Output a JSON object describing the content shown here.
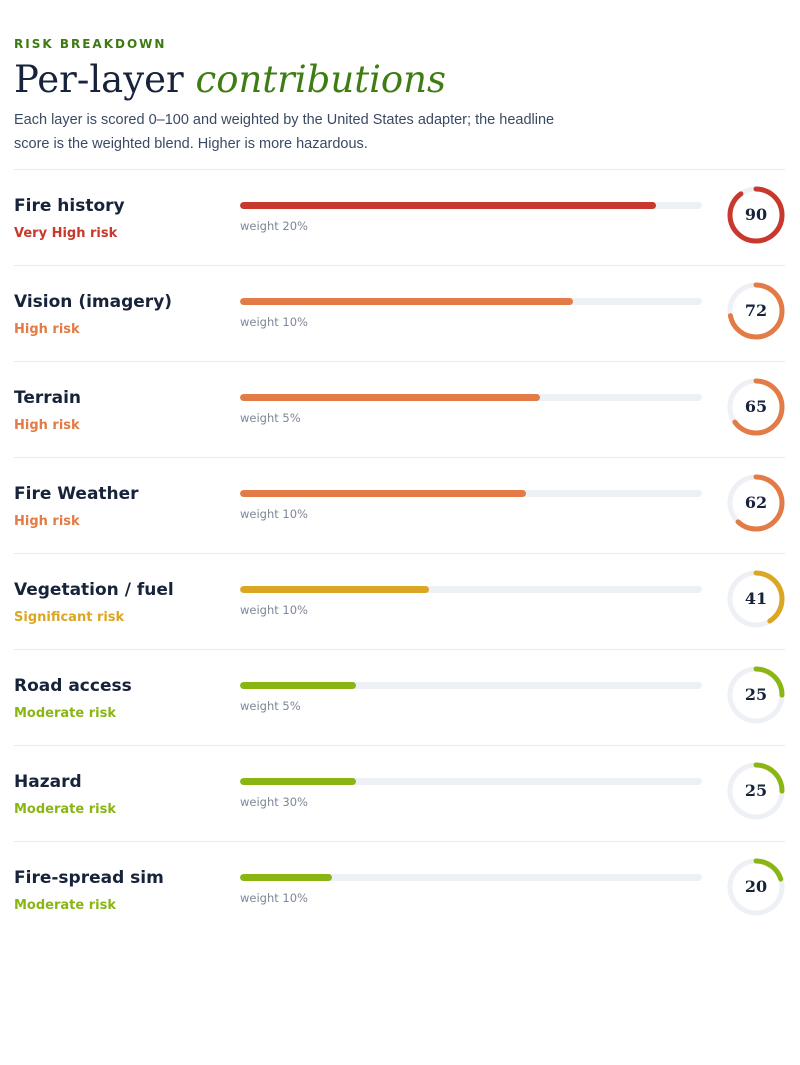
{
  "header": {
    "eyebrow": "RISK BREAKDOWN",
    "title_plain": "Per-layer ",
    "title_accent": "contributions",
    "intro": "Each layer is scored 0–100 and weighted by the United States adapter; the headline score is the weighted blend. Higher is more hazardous."
  },
  "colors": {
    "very_high": "#c8382c",
    "high": "#e27b45",
    "significant": "#dba624",
    "moderate": "#8ab613",
    "track": "#edf0f4"
  },
  "layers": [
    {
      "name": "Fire history",
      "risk": "Very High risk",
      "level": "very_high",
      "weight": "weight 20%",
      "score": 90
    },
    {
      "name": "Vision (imagery)",
      "risk": "High risk",
      "level": "high",
      "weight": "weight 10%",
      "score": 72
    },
    {
      "name": "Terrain",
      "risk": "High risk",
      "level": "high",
      "weight": "weight 5%",
      "score": 65
    },
    {
      "name": "Fire Weather",
      "risk": "High risk",
      "level": "high",
      "weight": "weight 10%",
      "score": 62
    },
    {
      "name": "Vegetation / fuel",
      "risk": "Significant risk",
      "level": "significant",
      "weight": "weight 10%",
      "score": 41
    },
    {
      "name": "Road access",
      "risk": "Moderate risk",
      "level": "moderate",
      "weight": "weight 5%",
      "score": 25
    },
    {
      "name": "Hazard",
      "risk": "Moderate risk",
      "level": "moderate",
      "weight": "weight 30%",
      "score": 25
    },
    {
      "name": "Fire-spread sim",
      "risk": "Moderate risk",
      "level": "moderate",
      "weight": "weight 10%",
      "score": 20
    }
  ]
}
